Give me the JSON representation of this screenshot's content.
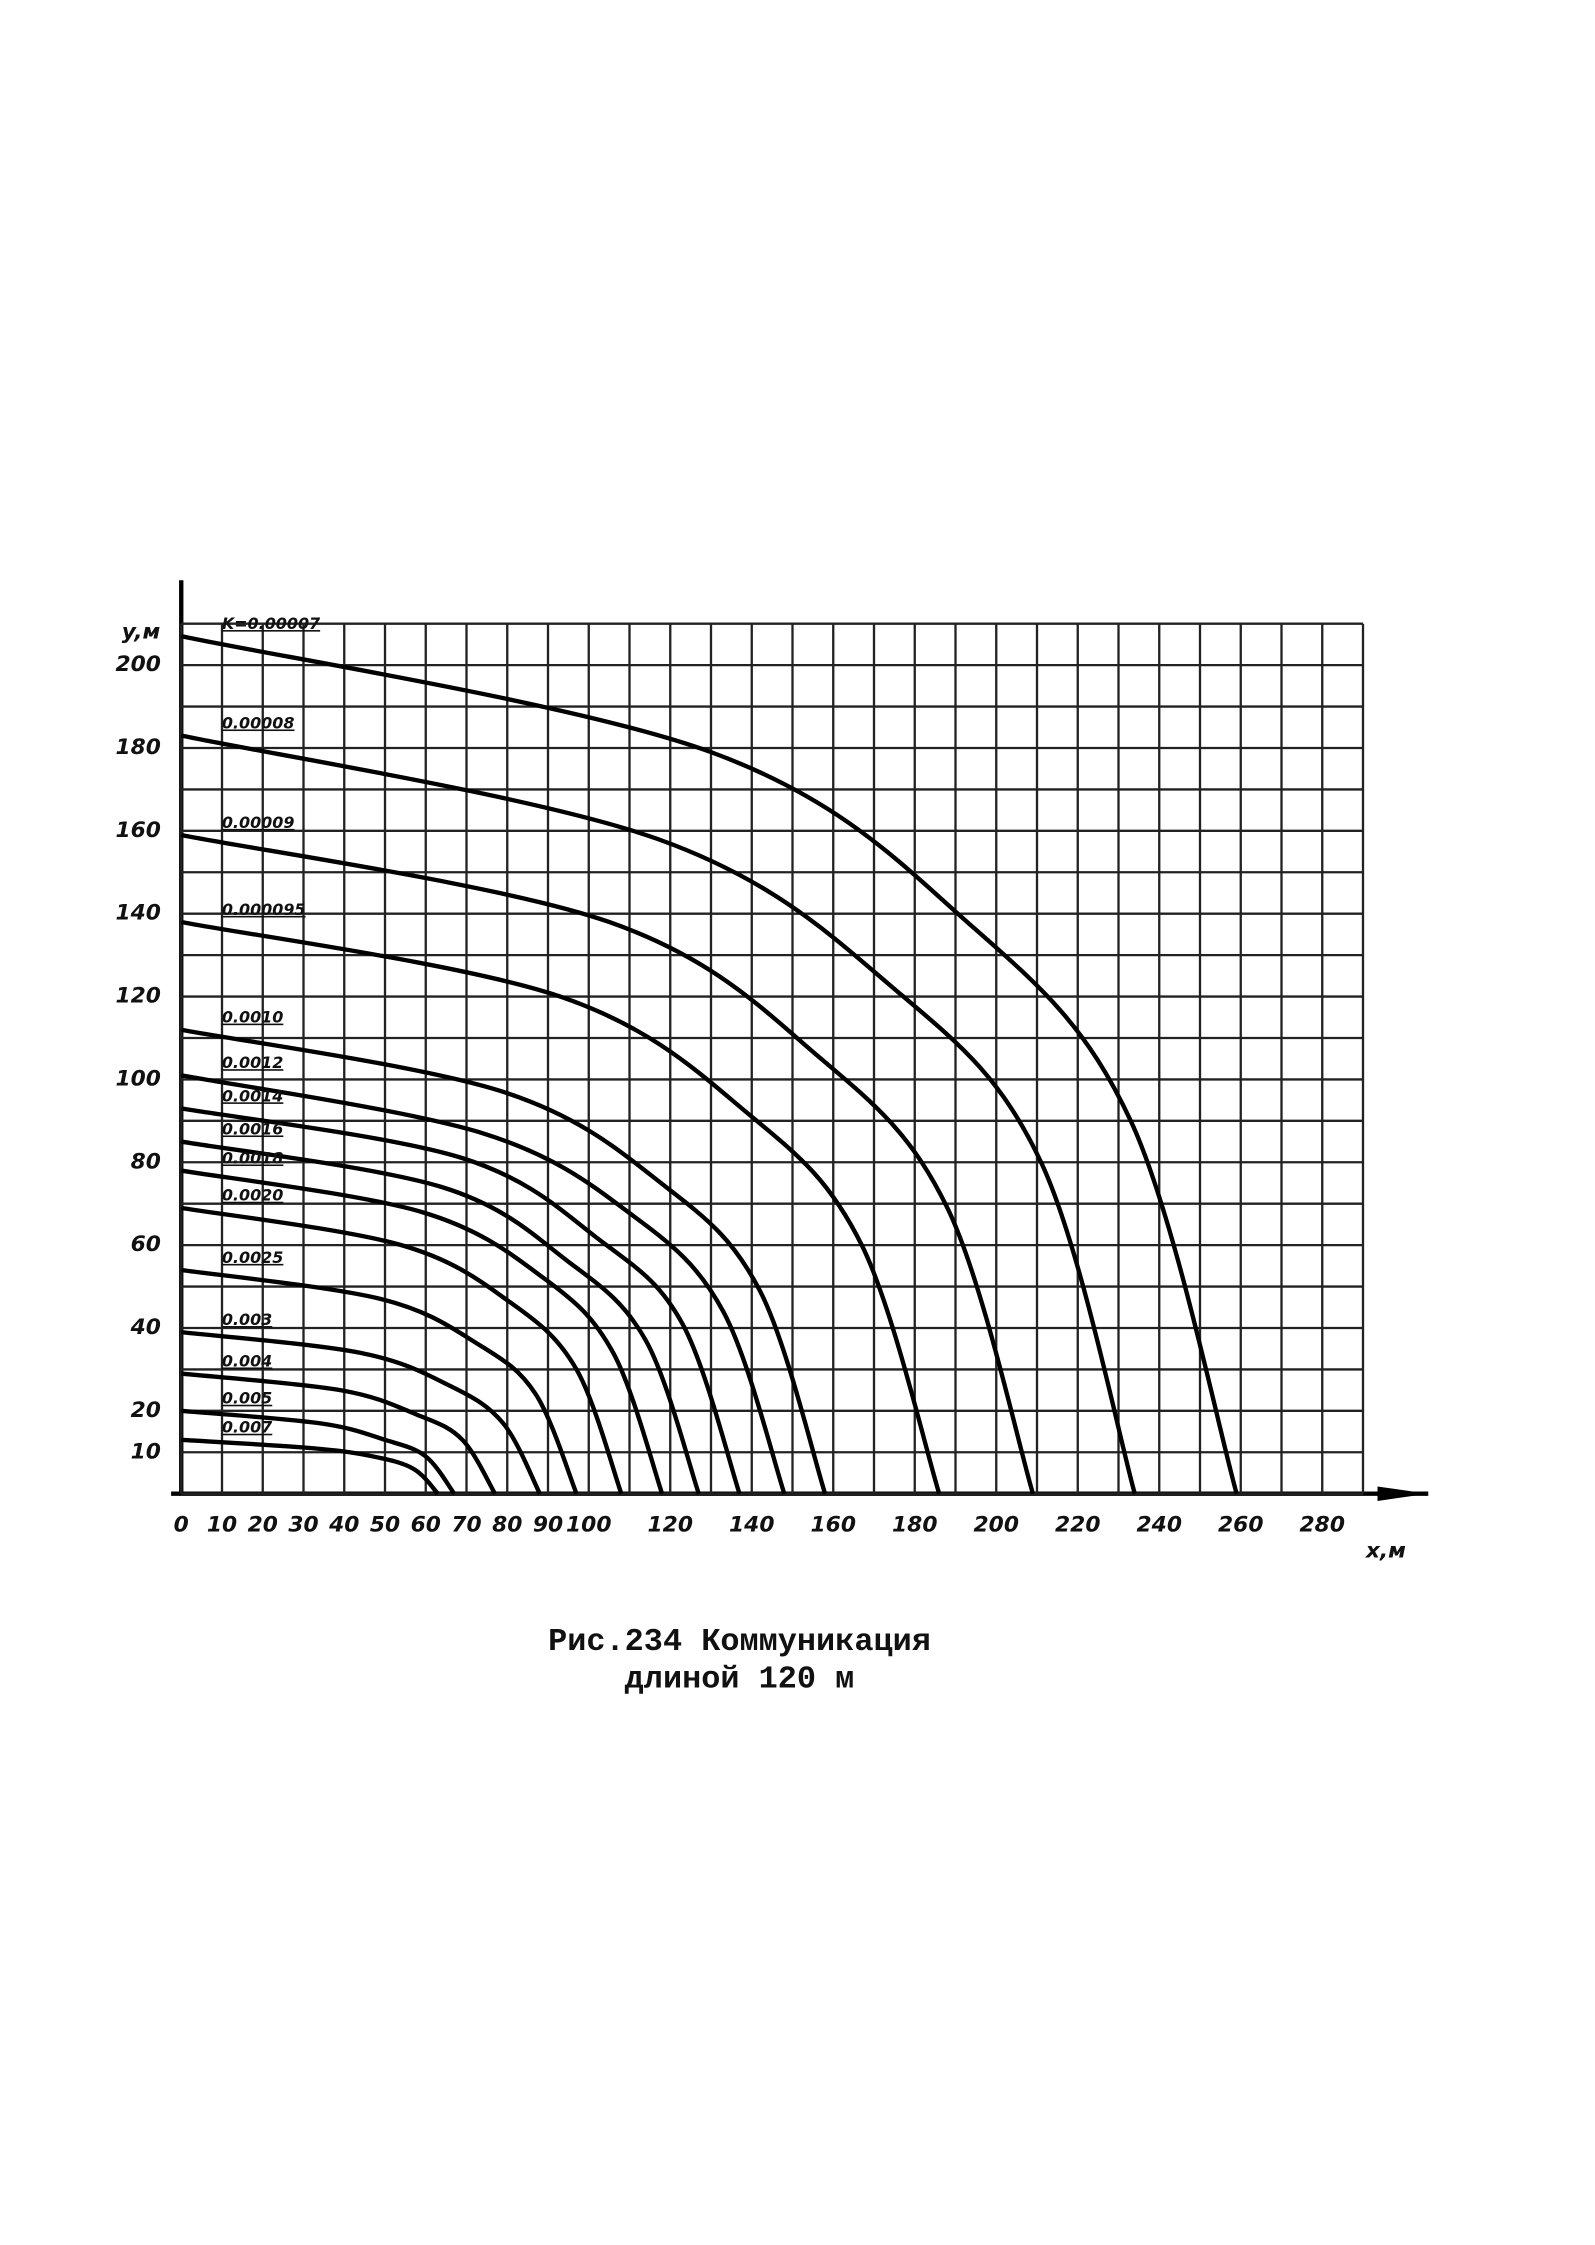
{
  "chart_data": {
    "type": "line",
    "title": [
      "Рис.234 Коммуникация",
      "длиной 120 м"
    ],
    "x_label": "x,м",
    "y_label": "y,м",
    "xlim": [
      0,
      290
    ],
    "ylim": [
      0,
      210
    ],
    "xticks": [
      0,
      10,
      20,
      30,
      40,
      50,
      60,
      70,
      80,
      90,
      100,
      120,
      140,
      160,
      180,
      200,
      220,
      240,
      260,
      280
    ],
    "yticks": [
      10,
      20,
      40,
      60,
      80,
      100,
      120,
      140,
      160,
      180,
      200
    ],
    "grid": true,
    "series": [
      {
        "name": "K=0.00007",
        "color": "#000000",
        "x": [
          0,
          130,
          194,
          233,
          259
        ],
        "values": [
          207,
          179,
          137,
          90,
          0
        ]
      },
      {
        "name": "0.00008",
        "color": "#000000",
        "x": [
          0,
          117,
          176,
          211,
          234
        ],
        "values": [
          183,
          158,
          121,
          80,
          0
        ]
      },
      {
        "name": "0.00009",
        "color": "#000000",
        "x": [
          0,
          105,
          157,
          188,
          209
        ],
        "values": [
          159,
          138,
          105,
          69,
          0
        ]
      },
      {
        "name": "0.000095",
        "color": "#000000",
        "x": [
          0,
          93,
          140,
          167,
          186
        ],
        "values": [
          138,
          120,
          91,
          60,
          0
        ]
      },
      {
        "name": "0.0010",
        "color": "#000000",
        "x": [
          0,
          79,
          119,
          142,
          158
        ],
        "values": [
          112,
          97,
          74,
          49,
          0
        ]
      },
      {
        "name": "0.0012",
        "color": "#000000",
        "x": [
          0,
          74,
          111,
          133,
          148
        ],
        "values": [
          101,
          87,
          67,
          44,
          0
        ]
      },
      {
        "name": "0.0014",
        "color": "#000000",
        "x": [
          0,
          69,
          103,
          123,
          137
        ],
        "values": [
          93,
          81,
          61,
          41,
          0
        ]
      },
      {
        "name": "0.0016",
        "color": "#000000",
        "x": [
          0,
          64,
          95,
          114,
          127
        ],
        "values": [
          85,
          74,
          56,
          37,
          0
        ]
      },
      {
        "name": "0.0018",
        "color": "#000000",
        "x": [
          0,
          59,
          89,
          106,
          118
        ],
        "values": [
          78,
          68,
          52,
          34,
          0
        ]
      },
      {
        "name": "0.0020",
        "color": "#000000",
        "x": [
          0,
          54,
          81,
          97,
          108
        ],
        "values": [
          69,
          60,
          46,
          30,
          0
        ]
      },
      {
        "name": "0.0025",
        "color": "#000000",
        "x": [
          0,
          49,
          73,
          87,
          97
        ],
        "values": [
          54,
          47,
          36,
          24,
          0
        ]
      },
      {
        "name": "0.003",
        "color": "#000000",
        "x": [
          0,
          44,
          66,
          79,
          88
        ],
        "values": [
          39,
          34,
          26,
          17,
          0
        ]
      },
      {
        "name": "0.004",
        "color": "#000000",
        "x": [
          0,
          39,
          58,
          69,
          77
        ],
        "values": [
          29,
          25,
          19,
          13,
          0
        ]
      },
      {
        "name": "0.005",
        "color": "#000000",
        "x": [
          0,
          34,
          50,
          60,
          67
        ],
        "values": [
          20,
          17,
          13,
          9,
          0
        ]
      },
      {
        "name": "0.007",
        "color": "#000000",
        "x": [
          0,
          32,
          47,
          57,
          63
        ],
        "values": [
          13,
          11,
          9,
          6,
          0
        ]
      }
    ]
  }
}
